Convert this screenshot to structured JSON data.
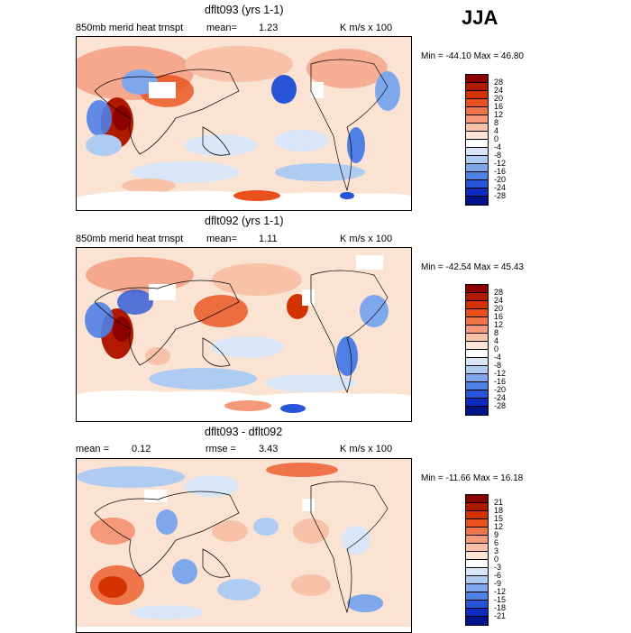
{
  "season": "JJA",
  "units": "K m/s x 100",
  "panels": [
    {
      "title": "dflt093 (yrs 1-1)",
      "subtitle_left": "850mb merid heat trnspt",
      "mean_label": "mean=",
      "mean_value": "1.23",
      "units": "K m/s x 100",
      "minmax": "Min = -44.10 Max =  46.80"
    },
    {
      "title": "dflt092 (yrs 1-1)",
      "subtitle_left": "850mb merid heat trnspt",
      "mean_label": "mean=",
      "mean_value": "1.11",
      "units": "K m/s x 100",
      "minmax": "Min = -42.54 Max =  45.43"
    },
    {
      "title": "dflt093 - dflt092",
      "mean_label": "mean =",
      "mean_value": "0.12",
      "rmse_label": "rmse =",
      "rmse_value": "3.43",
      "units": "K m/s x 100",
      "minmax": "Min = -11.66 Max =  16.18"
    }
  ],
  "colorbar1": {
    "labels": [
      "28",
      "24",
      "20",
      "16",
      "12",
      "8",
      "4",
      "0",
      "-4",
      "-8",
      "-12",
      "-16",
      "-20",
      "-24",
      "-28"
    ],
    "colors": [
      "#8c0000",
      "#b01a00",
      "#d43300",
      "#e8501c",
      "#f0744a",
      "#f4997a",
      "#f8c2a8",
      "#fde4d4",
      "#ffffff",
      "#d8e6f8",
      "#aecbf2",
      "#7fa8ec",
      "#4f80e6",
      "#2855d8",
      "#0c2cc0",
      "#00138a"
    ]
  },
  "colorbar2": {
    "labels": [
      "28",
      "24",
      "20",
      "16",
      "12",
      "8",
      "4",
      "0",
      "-4",
      "-8",
      "-12",
      "-16",
      "-20",
      "-24",
      "-28"
    ],
    "colors": [
      "#8c0000",
      "#b01a00",
      "#d43300",
      "#e8501c",
      "#f0744a",
      "#f4997a",
      "#f8c2a8",
      "#fde4d4",
      "#ffffff",
      "#d8e6f8",
      "#aecbf2",
      "#7fa8ec",
      "#4f80e6",
      "#2855d8",
      "#0c2cc0",
      "#00138a"
    ]
  },
  "colorbar3": {
    "labels": [
      "21",
      "18",
      "15",
      "12",
      "9",
      "6",
      "3",
      "0",
      "-3",
      "-6",
      "-9",
      "-12",
      "-15",
      "-18",
      "-21"
    ],
    "colors": [
      "#8c0000",
      "#b01a00",
      "#d43300",
      "#e8501c",
      "#f0744a",
      "#f4997a",
      "#f8c2a8",
      "#fde4d4",
      "#ffffff",
      "#d8e6f8",
      "#aecbf2",
      "#7fa8ec",
      "#4f80e6",
      "#2855d8",
      "#0c2cc0",
      "#00138a"
    ]
  },
  "chart_data": [
    {
      "type": "heatmap",
      "title": "dflt093 (yrs 1-1)",
      "subtitle": "850mb merid heat trnspt",
      "mean": 1.23,
      "units": "K m/s x 100",
      "min": -44.1,
      "max": 46.8,
      "contour_levels": [
        -28,
        -24,
        -20,
        -16,
        -12,
        -8,
        -4,
        0,
        4,
        8,
        12,
        16,
        20,
        24,
        28
      ],
      "notable_features": [
        {
          "region": "Arabian Sea / India",
          "sign": "positive",
          "approx_value": 28
        },
        {
          "region": "East Africa",
          "sign": "negative",
          "approx_value": -20
        },
        {
          "region": "Western Pacific / Japan",
          "sign": "negative",
          "approx_value": -24
        },
        {
          "region": "Antarctic coast (Atlantic)",
          "sign": "positive",
          "approx_value": 20
        }
      ]
    },
    {
      "type": "heatmap",
      "title": "dflt092 (yrs 1-1)",
      "subtitle": "850mb merid heat trnspt",
      "mean": 1.11,
      "units": "K m/s x 100",
      "min": -42.54,
      "max": 45.43,
      "contour_levels": [
        -28,
        -24,
        -20,
        -16,
        -12,
        -8,
        -4,
        0,
        4,
        8,
        12,
        16,
        20,
        24,
        28
      ],
      "notable_features": [
        {
          "region": "Arabian Sea / India",
          "sign": "positive",
          "approx_value": 28
        },
        {
          "region": "East Africa",
          "sign": "negative",
          "approx_value": -20
        },
        {
          "region": "South America east coast",
          "sign": "negative",
          "approx_value": -16
        },
        {
          "region": "Antarctic coast (Pacific)",
          "sign": "negative",
          "approx_value": -24
        }
      ]
    },
    {
      "type": "heatmap",
      "title": "dflt093 - dflt092",
      "mean": 0.12,
      "rmse": 3.43,
      "units": "K m/s x 100",
      "min": -11.66,
      "max": 16.18,
      "contour_levels": [
        -21,
        -18,
        -15,
        -12,
        -9,
        -6,
        -3,
        0,
        3,
        6,
        9,
        12,
        15,
        18,
        21
      ],
      "notable_features": [
        {
          "region": "Southern Africa / Indian Ocean",
          "sign": "positive",
          "approx_value": 15
        },
        {
          "region": "North Pacific",
          "sign": "mixed",
          "approx_value": 6
        },
        {
          "region": "Southern Ocean",
          "sign": "negative",
          "approx_value": -9
        }
      ]
    }
  ]
}
